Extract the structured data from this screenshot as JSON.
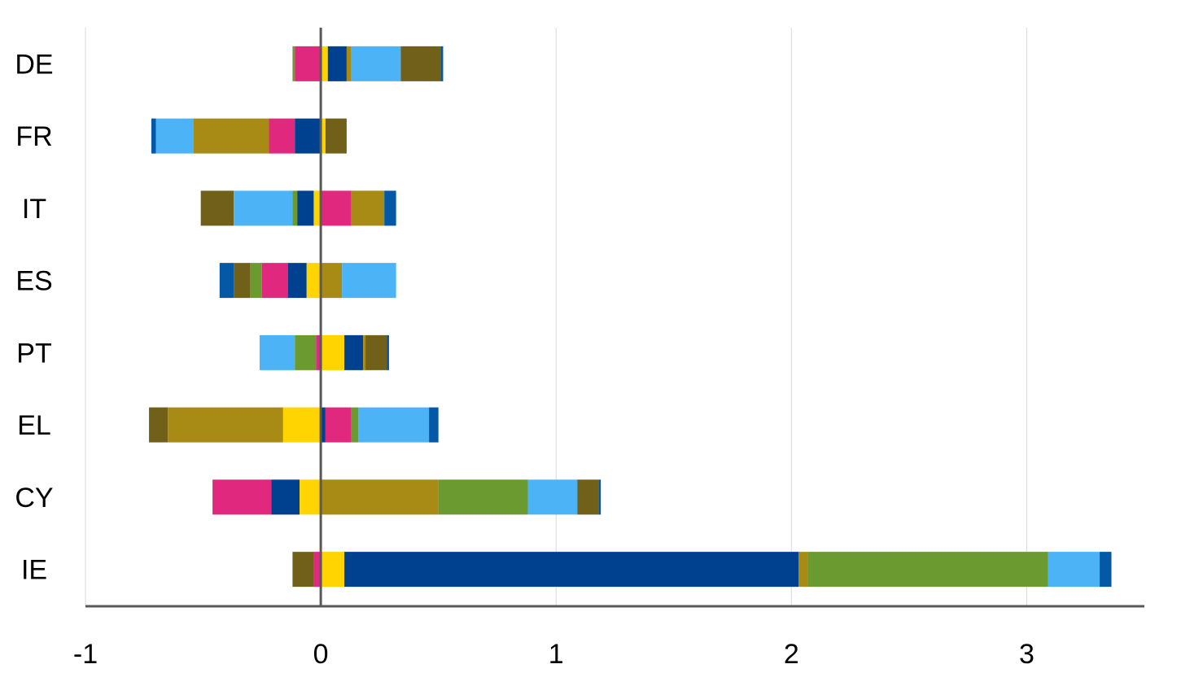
{
  "chart_data": {
    "type": "bar",
    "orientation": "horizontal",
    "stacked": true,
    "categories": [
      "DE",
      "FR",
      "IT",
      "ES",
      "PT",
      "EL",
      "CY",
      "IE"
    ],
    "xlim": [
      -1,
      3.5
    ],
    "xticks": [
      "-1",
      "0",
      "1",
      "2",
      "3"
    ],
    "grid": "vertical",
    "legend": "none",
    "segments": [
      [
        {
          "from": -0.12,
          "to": -0.11,
          "color": "#6A9A30"
        },
        {
          "from": -0.11,
          "to": 0.0,
          "color": "#E0287E"
        },
        {
          "from": 0.0,
          "to": 0.03,
          "color": "#FFD400"
        },
        {
          "from": 0.03,
          "to": 0.11,
          "color": "#00418F"
        },
        {
          "from": 0.11,
          "to": 0.13,
          "color": "#A88B15"
        },
        {
          "from": 0.13,
          "to": 0.34,
          "color": "#4DB3F7"
        },
        {
          "from": 0.34,
          "to": 0.51,
          "color": "#71601A"
        },
        {
          "from": 0.51,
          "to": 0.52,
          "color": "#0558A5"
        }
      ],
      [
        {
          "from": -0.72,
          "to": -0.7,
          "color": "#0558A5"
        },
        {
          "from": -0.7,
          "to": -0.54,
          "color": "#4DB3F7"
        },
        {
          "from": -0.54,
          "to": -0.22,
          "color": "#A88B15"
        },
        {
          "from": -0.22,
          "to": -0.11,
          "color": "#E0287E"
        },
        {
          "from": -0.11,
          "to": 0.0,
          "color": "#00418F"
        },
        {
          "from": 0.0,
          "to": 0.02,
          "color": "#FFD400"
        },
        {
          "from": 0.02,
          "to": 0.11,
          "color": "#71601A"
        }
      ],
      [
        {
          "from": -0.51,
          "to": -0.37,
          "color": "#71601A"
        },
        {
          "from": -0.37,
          "to": -0.12,
          "color": "#4DB3F7"
        },
        {
          "from": -0.12,
          "to": -0.1,
          "color": "#6A9A30"
        },
        {
          "from": -0.1,
          "to": -0.03,
          "color": "#00418F"
        },
        {
          "from": -0.03,
          "to": 0.0,
          "color": "#FFD400"
        },
        {
          "from": 0.0,
          "to": 0.13,
          "color": "#E0287E"
        },
        {
          "from": 0.13,
          "to": 0.27,
          "color": "#A88B15"
        },
        {
          "from": 0.27,
          "to": 0.32,
          "color": "#0558A5"
        }
      ],
      [
        {
          "from": -0.43,
          "to": -0.37,
          "color": "#0558A5"
        },
        {
          "from": -0.37,
          "to": -0.3,
          "color": "#71601A"
        },
        {
          "from": -0.3,
          "to": -0.25,
          "color": "#6A9A30"
        },
        {
          "from": -0.25,
          "to": -0.14,
          "color": "#E0287E"
        },
        {
          "from": -0.14,
          "to": -0.06,
          "color": "#00418F"
        },
        {
          "from": -0.06,
          "to": 0.0,
          "color": "#FFD400"
        },
        {
          "from": 0.0,
          "to": 0.09,
          "color": "#A88B15"
        },
        {
          "from": 0.09,
          "to": 0.32,
          "color": "#4DB3F7"
        }
      ],
      [
        {
          "from": -0.26,
          "to": -0.11,
          "color": "#4DB3F7"
        },
        {
          "from": -0.11,
          "to": -0.02,
          "color": "#6A9A30"
        },
        {
          "from": -0.02,
          "to": 0.0,
          "color": "#E0287E"
        },
        {
          "from": 0.0,
          "to": 0.1,
          "color": "#FFD400"
        },
        {
          "from": 0.1,
          "to": 0.18,
          "color": "#00418F"
        },
        {
          "from": 0.18,
          "to": 0.19,
          "color": "#A88B15"
        },
        {
          "from": 0.19,
          "to": 0.28,
          "color": "#71601A"
        },
        {
          "from": 0.28,
          "to": 0.29,
          "color": "#0558A5"
        }
      ],
      [
        {
          "from": -0.73,
          "to": -0.65,
          "color": "#71601A"
        },
        {
          "from": -0.65,
          "to": -0.16,
          "color": "#A88B15"
        },
        {
          "from": -0.16,
          "to": 0.0,
          "color": "#FFD400"
        },
        {
          "from": 0.0,
          "to": 0.02,
          "color": "#00418F"
        },
        {
          "from": 0.02,
          "to": 0.13,
          "color": "#E0287E"
        },
        {
          "from": 0.13,
          "to": 0.16,
          "color": "#6A9A30"
        },
        {
          "from": 0.16,
          "to": 0.46,
          "color": "#4DB3F7"
        },
        {
          "from": 0.46,
          "to": 0.5,
          "color": "#0558A5"
        }
      ],
      [
        {
          "from": -0.46,
          "to": -0.21,
          "color": "#E0287E"
        },
        {
          "from": -0.21,
          "to": -0.09,
          "color": "#00418F"
        },
        {
          "from": -0.09,
          "to": 0.0,
          "color": "#FFD400"
        },
        {
          "from": 0.0,
          "to": 0.5,
          "color": "#A88B15"
        },
        {
          "from": 0.5,
          "to": 0.88,
          "color": "#6A9A30"
        },
        {
          "from": 0.88,
          "to": 1.09,
          "color": "#4DB3F7"
        },
        {
          "from": 1.09,
          "to": 1.18,
          "color": "#71601A"
        },
        {
          "from": 1.18,
          "to": 1.19,
          "color": "#0558A5"
        }
      ],
      [
        {
          "from": -0.12,
          "to": -0.03,
          "color": "#71601A"
        },
        {
          "from": -0.03,
          "to": 0.0,
          "color": "#E0287E"
        },
        {
          "from": 0.0,
          "to": 0.1,
          "color": "#FFD400"
        },
        {
          "from": 0.1,
          "to": 2.03,
          "color": "#00418F"
        },
        {
          "from": 2.03,
          "to": 2.07,
          "color": "#A88B15"
        },
        {
          "from": 2.07,
          "to": 3.09,
          "color": "#6A9A30"
        },
        {
          "from": 3.09,
          "to": 3.31,
          "color": "#4DB3F7"
        },
        {
          "from": 3.31,
          "to": 3.36,
          "color": "#0558A5"
        }
      ]
    ]
  }
}
